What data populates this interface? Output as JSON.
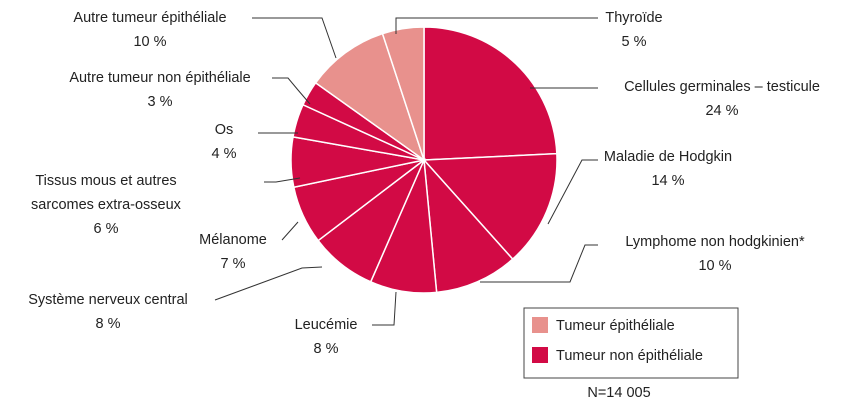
{
  "chart_data": {
    "type": "pie",
    "categories": [
      "Cellules germinales – testicule",
      "Maladie de Hodgkin",
      "Lymphome non hodgkinien*",
      "Leucémie",
      "Système nerveux central",
      "Mélanome",
      "Tissus mous et autres sarcomes extra-osseux",
      "Os",
      "Autre tumeur non épithéliale",
      "Autre tumeur épithéliale",
      "Thyroïde"
    ],
    "values": [
      24,
      14,
      10,
      8,
      8,
      7,
      6,
      4,
      3,
      10,
      5
    ],
    "value_labels": [
      "24 %",
      "14 %",
      "10 %",
      "8 %",
      "8 %",
      "7 %",
      "6 %",
      "4 %",
      "3 %",
      "10 %",
      "5 %"
    ],
    "colors": [
      "#d20a45",
      "#d20a45",
      "#d20a45",
      "#d20a45",
      "#d20a45",
      "#d20a45",
      "#d20a45",
      "#d20a45",
      "#d20a45",
      "#e8918d",
      "#e8918d"
    ],
    "legend": [
      {
        "name": "Tumeur épithéliale",
        "color": "#e8918d"
      },
      {
        "name": "Tumeur non épithéliale",
        "color": "#d20a45"
      }
    ],
    "note": "N=14 005"
  }
}
